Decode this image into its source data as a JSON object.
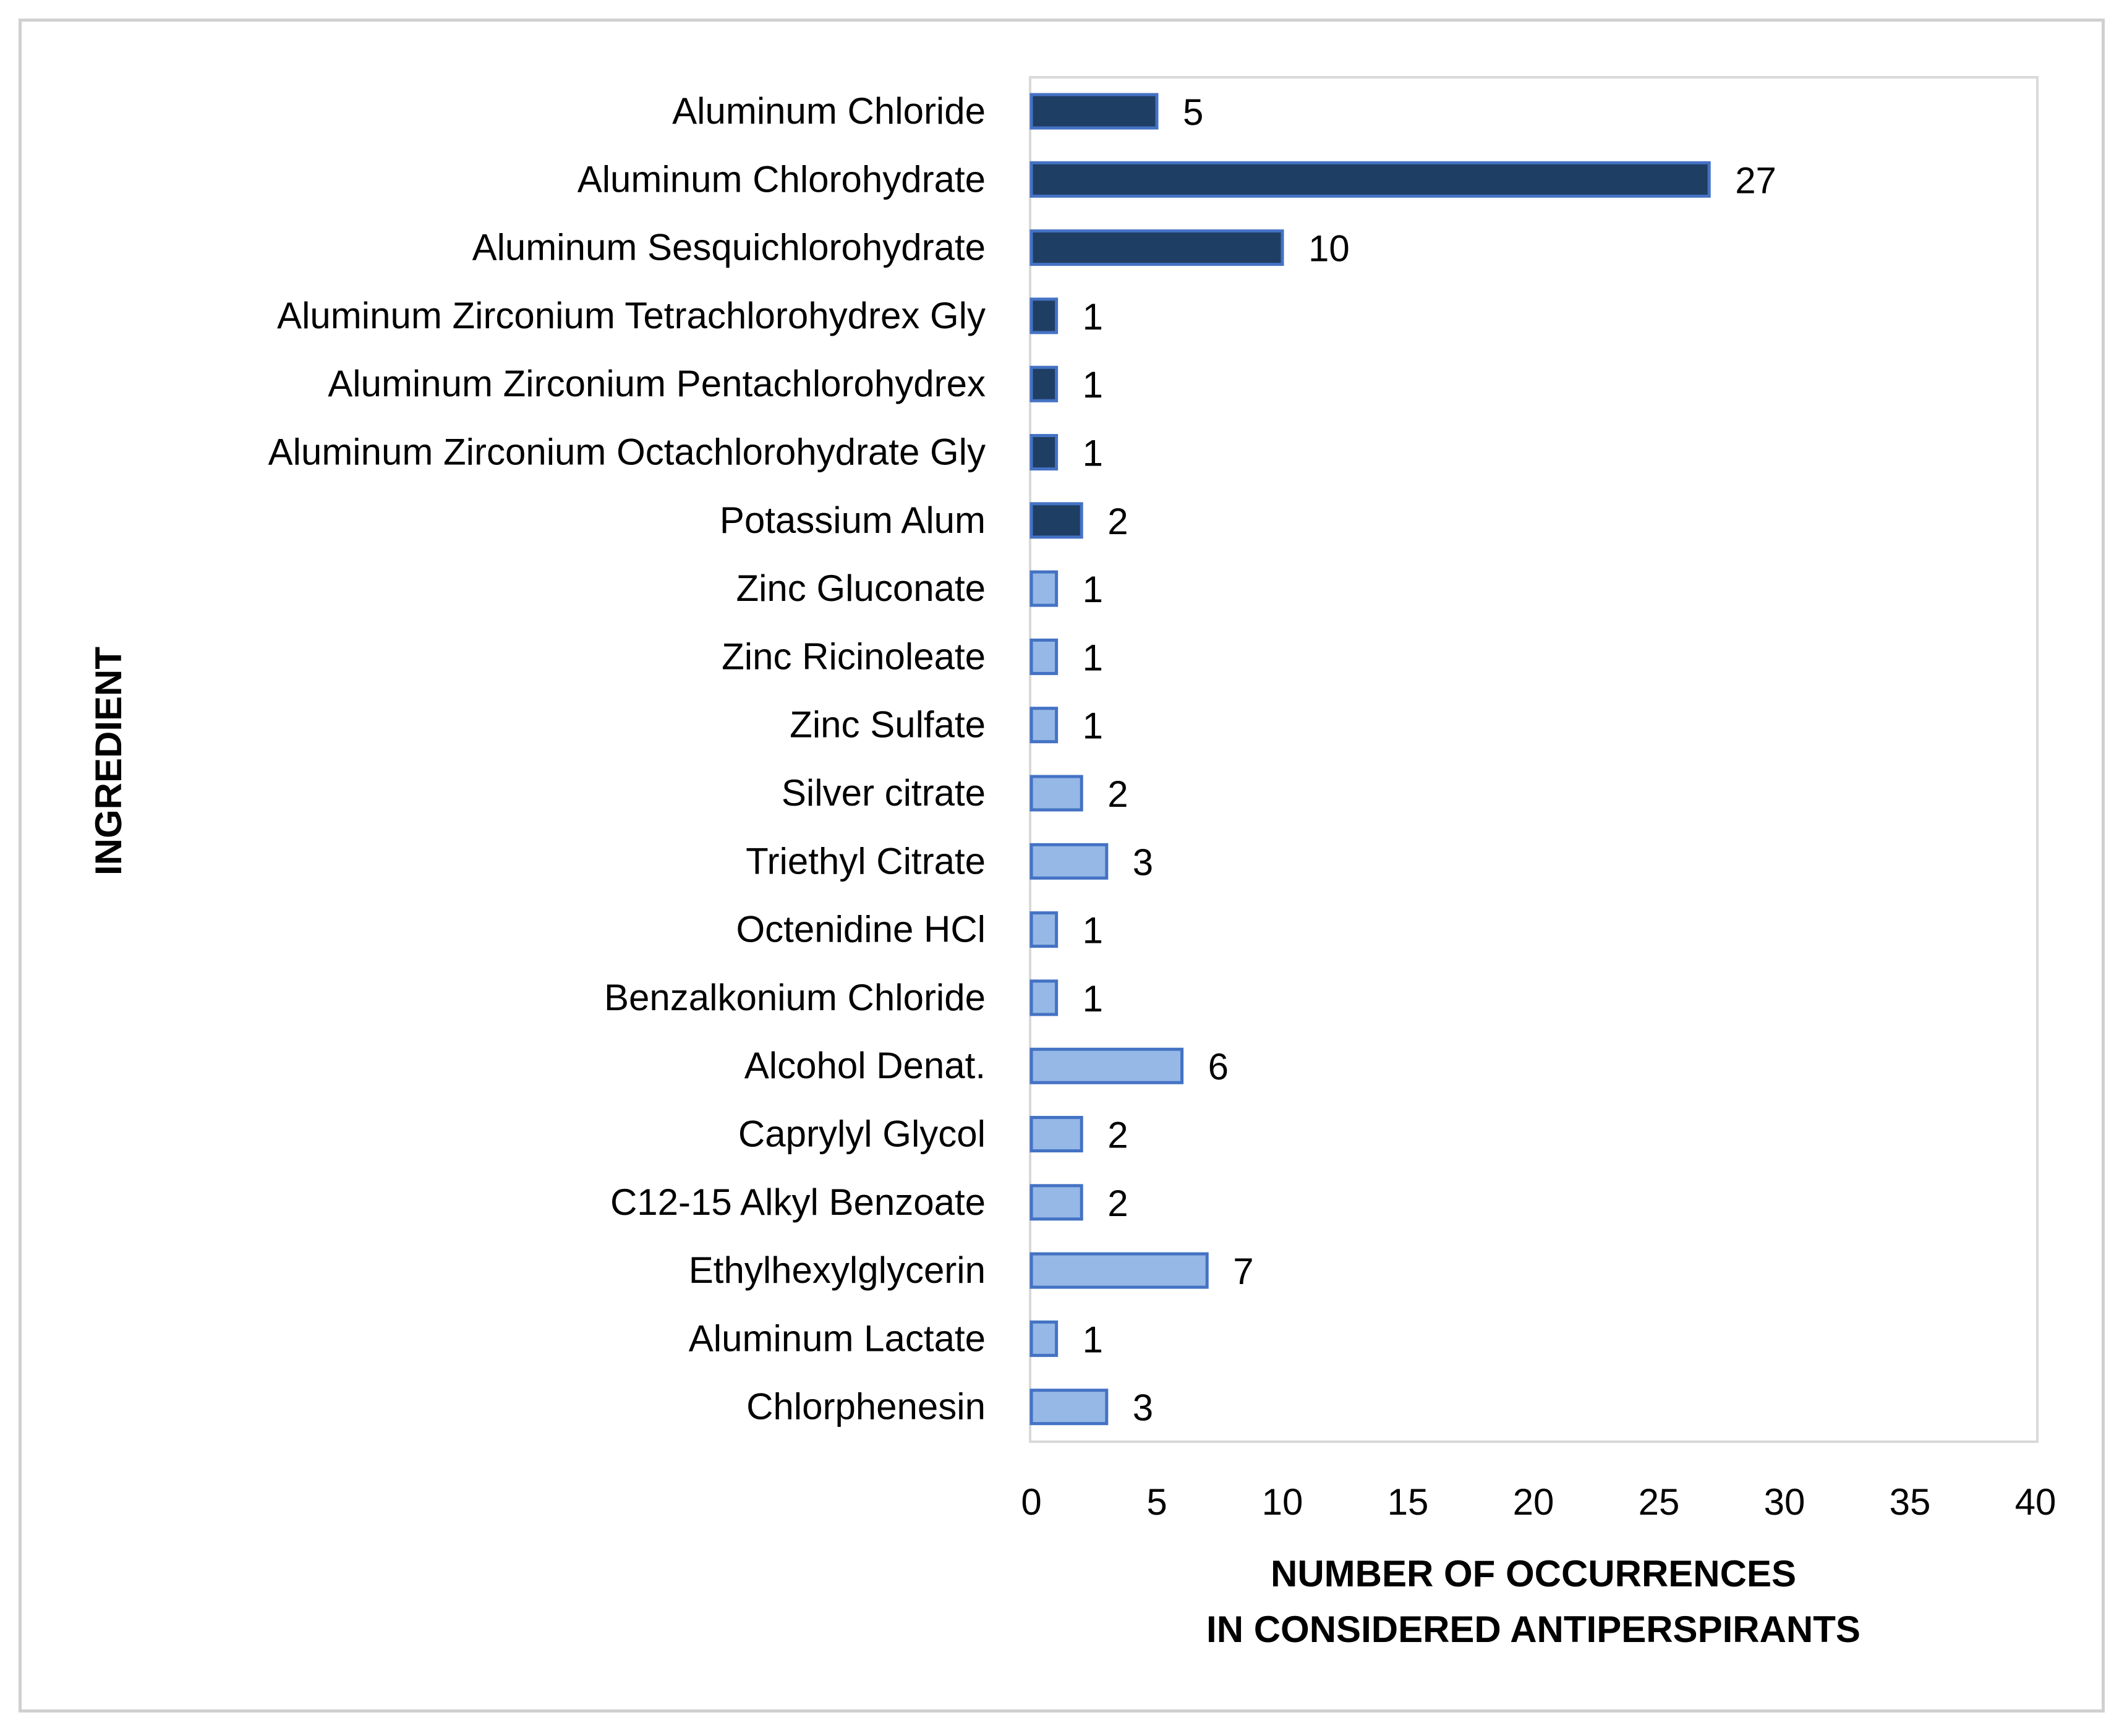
{
  "chart_data": {
    "type": "bar",
    "orientation": "horizontal",
    "categories": [
      "Aluminum Chloride",
      "Aluminum Chlorohydrate",
      "Aluminum Sesquichlorohydrate",
      "Aluminum Zirconium Tetrachlorohydrex Gly",
      "Aluminum Zirconium Pentachlorohydrex",
      "Aluminum Zirconium Octachlorohydrate Gly",
      "Potassium Alum",
      "Zinc Gluconate",
      "Zinc Ricinoleate",
      "Zinc Sulfate",
      "Silver citrate",
      "Triethyl Citrate",
      "Octenidine HCl",
      "Benzalkonium Chloride",
      "Alcohol Denat.",
      "Caprylyl Glycol",
      "C12-15 Alkyl Benzoate",
      "Ethylhexylglycerin",
      "Aluminum Lactate",
      "Chlorphenesin"
    ],
    "values": [
      5,
      27,
      10,
      1,
      1,
      1,
      2,
      1,
      1,
      1,
      2,
      3,
      1,
      1,
      6,
      2,
      2,
      7,
      1,
      3
    ],
    "data_labels": [
      "5",
      "27",
      "10",
      "1",
      "1",
      "1",
      "2",
      "1",
      "1",
      "1",
      "2",
      "3",
      "1",
      "1",
      "6",
      "2",
      "2",
      "7",
      "1",
      "3"
    ],
    "bar_groups": [
      "dark",
      "dark",
      "dark",
      "dark",
      "dark",
      "dark",
      "dark",
      "light",
      "light",
      "light",
      "light",
      "light",
      "light",
      "light",
      "light",
      "light",
      "light",
      "light",
      "light",
      "light"
    ],
    "colors": {
      "dark_fill": "#1F3E63",
      "dark_stroke": "#4472C4",
      "light_fill": "#95B8E6",
      "light_stroke": "#4472C4",
      "plot_border": "#d9d9d9"
    },
    "xlim": [
      0,
      40
    ],
    "xticks": [
      "0",
      "5",
      "10",
      "15",
      "20",
      "25",
      "30",
      "35",
      "40"
    ],
    "xlabel_line1": "NUMBER OF OCCURRENCES",
    "xlabel_line2": "IN CONSIDERED ANTIPERSPIRANTS",
    "ylabel": "INGREDIENT",
    "grid": false,
    "legend": "none"
  }
}
